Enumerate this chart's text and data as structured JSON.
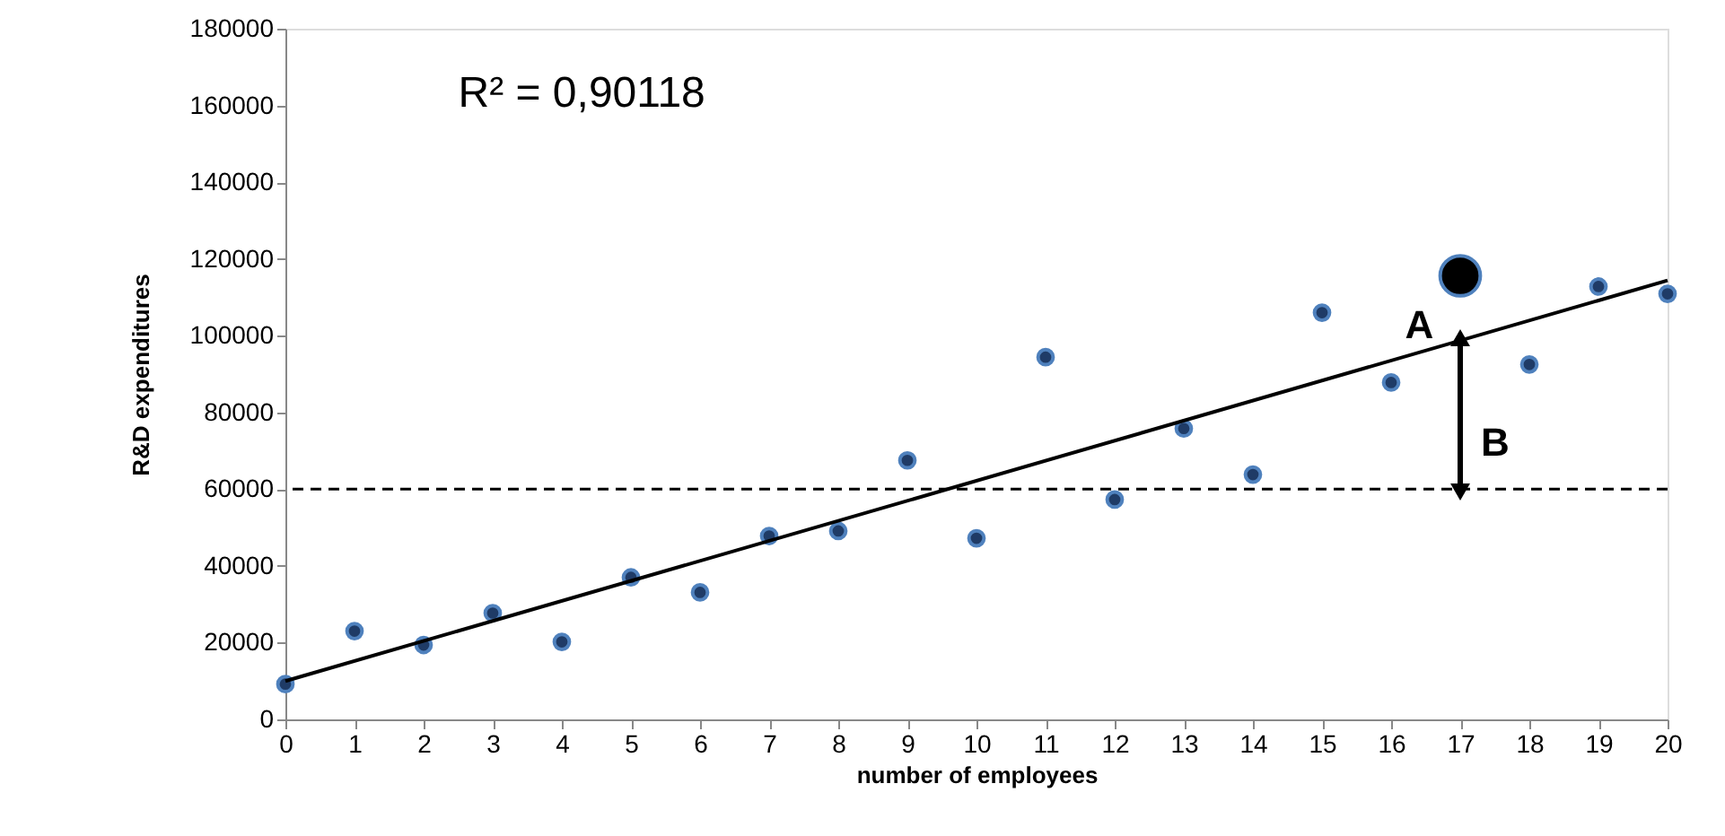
{
  "chart_data": {
    "type": "scatter",
    "xlabel": "number of employees",
    "ylabel": "R&D expenditures",
    "x": [
      0,
      1,
      2,
      3,
      4,
      5,
      6,
      7,
      8,
      9,
      10,
      11,
      12,
      13,
      14,
      15,
      16,
      18,
      19,
      20
    ],
    "series": [
      {
        "color": "#1f3b66",
        "marker": "circle",
        "values": [
          9200,
          23000,
          19400,
          27700,
          20200,
          37000,
          33100,
          47800,
          49100,
          67500,
          47200,
          94400,
          57300,
          75800,
          63800,
          106000,
          87800,
          92500,
          112800,
          110900
        ]
      },
      {
        "type": "scatter",
        "color": "#000000",
        "marker": "circle",
        "x": [
          17
        ],
        "values": [
          115600
        ]
      },
      {
        "type": "line",
        "color": "#000000",
        "line_style": "solid",
        "x": [
          0,
          20
        ],
        "values": [
          10000,
          114400
        ]
      }
    ],
    "xlim": [
      0,
      20
    ],
    "xticks": [
      0,
      1,
      2,
      3,
      4,
      5,
      6,
      7,
      8,
      9,
      10,
      11,
      12,
      13,
      14,
      15,
      16,
      17,
      18,
      19,
      20
    ],
    "ylim": [
      0,
      180000
    ],
    "yticks": [
      0,
      20000,
      40000,
      60000,
      80000,
      100000,
      120000,
      140000,
      160000,
      180000
    ],
    "grid": false,
    "ref_lines": [
      {
        "axis": "y",
        "value": 60000,
        "color": "#000000",
        "line_style": "dashed"
      }
    ],
    "annotations": [
      "R² = 0,90118",
      "A",
      "B"
    ]
  }
}
